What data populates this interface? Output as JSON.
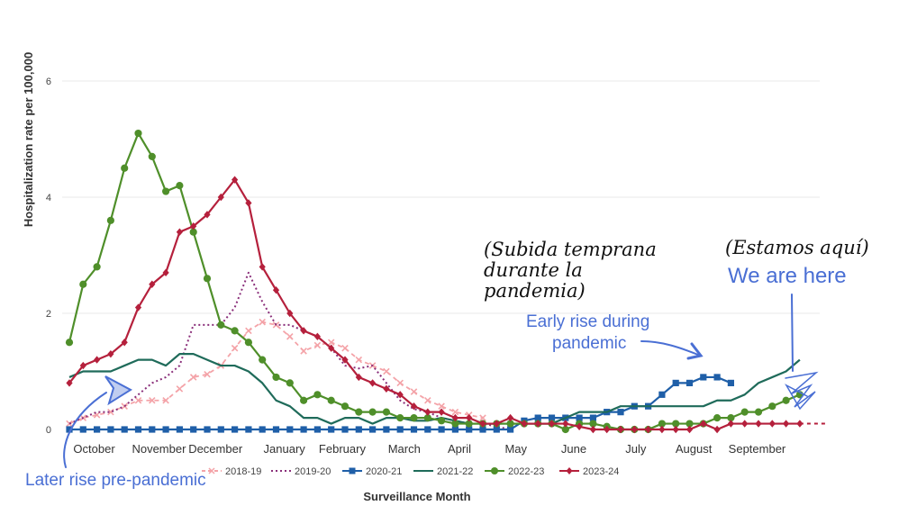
{
  "chart_data": {
    "type": "line",
    "xlabel": "Surveillance Month",
    "ylabel": "Hospitalization rate per 100,000",
    "ylim": [
      0,
      6.2
    ],
    "yticks": [
      0,
      2,
      4,
      6
    ],
    "month_labels": [
      "October",
      "November",
      "December",
      "January",
      "February",
      "March",
      "April",
      "May",
      "June",
      "July",
      "August",
      "September"
    ],
    "grid": true,
    "legend_position": "bottom",
    "series": [
      {
        "name": "2018-19",
        "color": "#f4a3a8",
        "style": "x-dashed",
        "x": [
          0,
          1,
          2,
          3,
          4,
          5,
          6,
          7,
          8,
          9,
          10,
          11,
          12,
          13,
          14,
          15,
          16,
          17,
          18,
          19,
          20,
          21,
          22,
          23,
          24,
          25,
          26,
          27,
          28,
          29,
          30
        ],
        "values": [
          0.1,
          0.2,
          0.25,
          0.3,
          0.4,
          0.5,
          0.5,
          0.5,
          0.7,
          0.9,
          0.95,
          1.1,
          1.4,
          1.7,
          1.85,
          1.8,
          1.6,
          1.35,
          1.45,
          1.5,
          1.4,
          1.2,
          1.1,
          1.0,
          0.8,
          0.65,
          0.5,
          0.4,
          0.3,
          0.25,
          0.2
        ]
      },
      {
        "name": "2019-20",
        "color": "#8a2f7a",
        "style": "dotted",
        "x": [
          0,
          1,
          2,
          3,
          4,
          5,
          6,
          7,
          8,
          9,
          10,
          11,
          12,
          13,
          14,
          15,
          16,
          17,
          18,
          19,
          20,
          21,
          22,
          23,
          24,
          25,
          26,
          27,
          28,
          29,
          30,
          31,
          32
        ],
        "values": [
          0.1,
          0.2,
          0.3,
          0.3,
          0.4,
          0.6,
          0.8,
          0.9,
          1.1,
          1.8,
          1.8,
          1.8,
          2.1,
          2.7,
          2.2,
          1.8,
          1.8,
          1.7,
          1.6,
          1.4,
          1.1,
          1.05,
          1.1,
          0.8,
          0.5,
          0.35,
          0.3,
          0.2,
          0.15,
          0.1,
          0.1,
          0.05,
          0.0
        ]
      },
      {
        "name": "2020-21",
        "color": "#1f5fa8",
        "style": "square",
        "x": [
          0,
          1,
          2,
          3,
          4,
          5,
          6,
          7,
          8,
          9,
          10,
          11,
          12,
          13,
          14,
          15,
          16,
          17,
          18,
          19,
          20,
          21,
          22,
          23,
          24,
          25,
          26,
          27,
          28,
          29,
          30,
          31,
          32,
          33,
          34,
          35,
          36,
          37,
          38,
          39,
          40,
          41,
          42,
          43,
          44,
          45,
          46,
          47,
          48
        ],
        "values": [
          0,
          0,
          0,
          0,
          0,
          0,
          0,
          0,
          0,
          0,
          0,
          0,
          0,
          0,
          0,
          0,
          0,
          0,
          0,
          0,
          0,
          0,
          0,
          0,
          0,
          0,
          0,
          0,
          0,
          0,
          0,
          0,
          0,
          0.15,
          0.2,
          0.2,
          0.2,
          0.2,
          0.2,
          0.3,
          0.3,
          0.4,
          0.4,
          0.6,
          0.8,
          0.8,
          0.9,
          0.9,
          0.8
        ]
      },
      {
        "name": "2021-22",
        "color": "#1f6b5a",
        "style": "solid",
        "x": [
          0,
          1,
          2,
          3,
          4,
          5,
          6,
          7,
          8,
          9,
          10,
          11,
          12,
          13,
          14,
          15,
          16,
          17,
          18,
          19,
          20,
          21,
          22,
          23,
          24,
          25,
          26,
          27,
          28,
          29,
          30,
          31,
          32,
          33,
          34,
          35,
          36,
          37,
          38,
          39,
          40,
          41,
          42,
          43,
          44,
          45,
          46,
          47,
          48,
          49,
          50,
          51,
          52,
          53
        ],
        "values": [
          0.9,
          1.0,
          1.0,
          1.0,
          1.1,
          1.2,
          1.2,
          1.1,
          1.3,
          1.3,
          1.2,
          1.1,
          1.1,
          1.0,
          0.8,
          0.5,
          0.4,
          0.2,
          0.2,
          0.1,
          0.2,
          0.2,
          0.1,
          0.2,
          0.2,
          0.15,
          0.15,
          0.2,
          0.15,
          0.1,
          0.1,
          0.1,
          0.1,
          0.1,
          0.1,
          0.1,
          0.2,
          0.3,
          0.3,
          0.3,
          0.4,
          0.4,
          0.4,
          0.4,
          0.4,
          0.4,
          0.4,
          0.5,
          0.5,
          0.6,
          0.8,
          0.9,
          1.0,
          1.2
        ]
      },
      {
        "name": "2022-23",
        "color": "#4f8f2a",
        "style": "circle",
        "x": [
          0,
          1,
          2,
          3,
          4,
          5,
          6,
          7,
          8,
          9,
          10,
          11,
          12,
          13,
          14,
          15,
          16,
          17,
          18,
          19,
          20,
          21,
          22,
          23,
          24,
          25,
          26,
          27,
          28,
          29,
          30,
          31,
          32,
          33,
          34,
          35,
          36,
          37,
          38,
          39,
          40,
          41,
          42,
          43,
          44,
          45,
          46,
          47,
          48,
          49,
          50,
          51,
          52,
          53
        ],
        "values": [
          1.5,
          2.5,
          2.8,
          3.6,
          4.5,
          5.1,
          4.7,
          4.1,
          4.2,
          3.4,
          2.6,
          1.8,
          1.7,
          1.5,
          1.2,
          0.9,
          0.8,
          0.5,
          0.6,
          0.5,
          0.4,
          0.3,
          0.3,
          0.3,
          0.2,
          0.2,
          0.2,
          0.15,
          0.1,
          0.1,
          0.1,
          0.1,
          0.1,
          0.1,
          0.1,
          0.1,
          0.0,
          0.1,
          0.1,
          0.05,
          0.0,
          0.0,
          0.0,
          0.1,
          0.1,
          0.1,
          0.1,
          0.2,
          0.2,
          0.3,
          0.3,
          0.4,
          0.5,
          0.6
        ]
      },
      {
        "name": "2023-24",
        "color": "#b5203c",
        "style": "diamond",
        "x": [
          0,
          1,
          2,
          3,
          4,
          5,
          6,
          7,
          8,
          9,
          10,
          11,
          12,
          13,
          14,
          15,
          16,
          17,
          18,
          19,
          20,
          21,
          22,
          23,
          24,
          25,
          26,
          27,
          28,
          29,
          30,
          31,
          32,
          33,
          34,
          35,
          36,
          37,
          38,
          39,
          40,
          41,
          42,
          43,
          44,
          45,
          46,
          47,
          48,
          49,
          50,
          51,
          52,
          53
        ],
        "values": [
          0.8,
          1.1,
          1.2,
          1.3,
          1.5,
          2.1,
          2.5,
          2.7,
          3.4,
          3.5,
          3.7,
          4.0,
          4.3,
          3.9,
          2.8,
          2.4,
          2.0,
          1.7,
          1.6,
          1.4,
          1.2,
          0.9,
          0.8,
          0.7,
          0.6,
          0.4,
          0.3,
          0.3,
          0.2,
          0.2,
          0.1,
          0.1,
          0.2,
          0.1,
          0.1,
          0.1,
          0.1,
          0.05,
          0.0,
          0.0,
          0.0,
          0.0,
          0.0,
          0.0,
          0.0,
          0.0,
          0.1,
          0.0,
          0.1,
          0.1,
          0.1,
          0.1,
          0.1,
          0.1
        ]
      }
    ],
    "future_extension": {
      "series": "2023-24",
      "from_x": 53,
      "to_x": 55,
      "value": 0.1
    }
  },
  "annotations": {
    "es_early_line1": "(Subida temprana",
    "es_early_line2": "durante la",
    "es_early_line3": "pandemia)",
    "es_here": "(Estamos aquí)",
    "en_here": "We are here",
    "en_early_line1": "Early rise during",
    "en_early_line2": "pandemic",
    "en_later": "Later rise pre-pandemic"
  }
}
